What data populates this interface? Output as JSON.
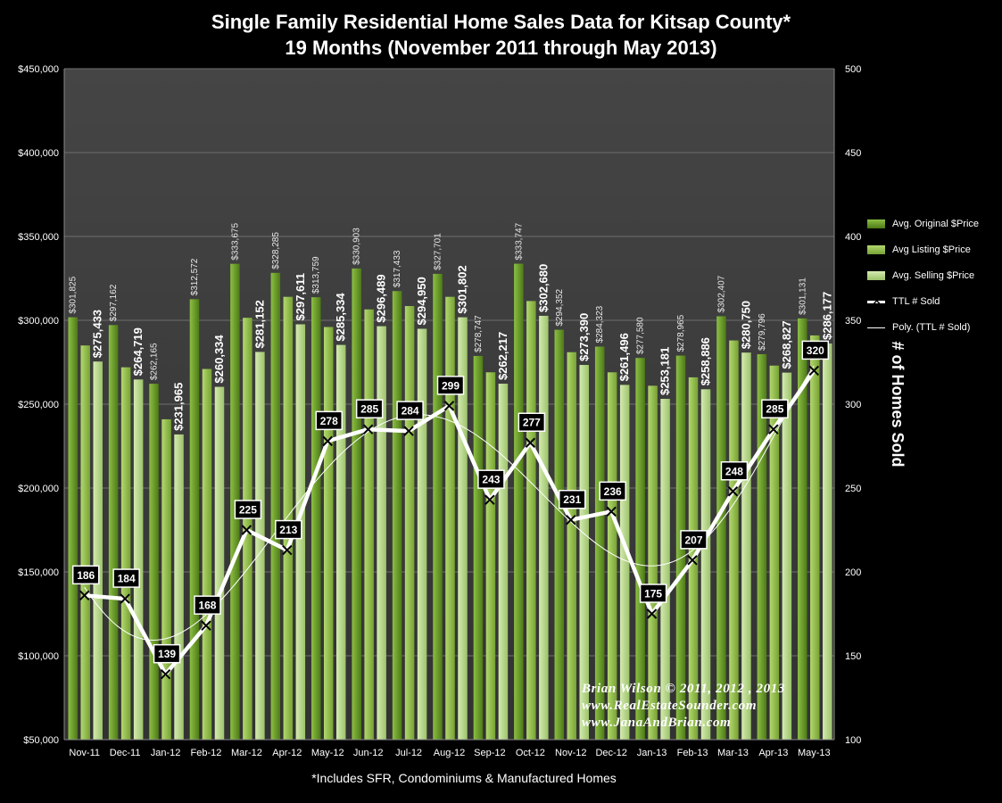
{
  "title_line1": "Single Family Residential Home Sales Data for Kitsap County*",
  "title_line2": "19 Months (November 2011 through May 2013)",
  "footnote": "*Includes SFR, Condominiums & Manufactured Homes",
  "credit": {
    "line1": "Brian Wilson © 2011, 2012 , 2013",
    "line2": "www.RealEstateSounder.com",
    "line3": "www.JanaAndBrian.com"
  },
  "legend": {
    "original": "Avg. Original $Price",
    "listing": "Avg Listing $Price",
    "selling": "Avg. Selling $Price",
    "sold": "TTL # Sold",
    "poly": "Poly. (TTL # Sold)"
  },
  "colors": {
    "background": "#000000",
    "plot_area": "#3c3c3c",
    "original": "#6b9a2c",
    "listing": "#93c04a",
    "selling": "#b7d98a",
    "line": "#ffffff"
  },
  "chart_data": {
    "type": "bar",
    "categories": [
      "Nov-11",
      "Dec-11",
      "Jan-12",
      "Feb-12",
      "Mar-12",
      "Apr-12",
      "May-12",
      "Jun-12",
      "Jul-12",
      "Aug-12",
      "Sep-12",
      "Oct-12",
      "Nov-12",
      "Dec-12",
      "Jan-13",
      "Feb-13",
      "Mar-13",
      "Apr-13",
      "May-13"
    ],
    "series": [
      {
        "name": "Avg. Original $Price",
        "values": [
          301825,
          297162,
          262165,
          312572,
          333675,
          328285,
          313759,
          330903,
          317433,
          327701,
          278747,
          333747,
          294352,
          284323,
          277580,
          278965,
          302407,
          279796,
          301131
        ]
      },
      {
        "name": "Avg Listing $Price",
        "values": [
          285000,
          272000,
          241000,
          271000,
          301500,
          314000,
          296000,
          306500,
          308500,
          314000,
          269000,
          311500,
          281000,
          269000,
          261000,
          266000,
          288000,
          273000,
          291000
        ]
      },
      {
        "name": "Avg. Selling $Price",
        "values": [
          275433,
          264719,
          231965,
          260334,
          281152,
          297611,
          285334,
          296489,
          294950,
          301802,
          262217,
          302680,
          273390,
          261496,
          253181,
          258886,
          280750,
          268827,
          286177
        ]
      },
      {
        "name": "TTL # Sold",
        "axis": "right",
        "values": [
          186,
          184,
          139,
          168,
          225,
          213,
          278,
          285,
          284,
          299,
          243,
          277,
          231,
          236,
          175,
          207,
          248,
          285,
          320
        ]
      }
    ],
    "original_labels": [
      "$301,825",
      "$297,162",
      "$262,165",
      "$312,572",
      "$333,675",
      "$328,285",
      "$313,759",
      "$330,903",
      "$317,433",
      "$327,701",
      "$278,747",
      "$333,747",
      "$294,352",
      "$284,323",
      "$277,580",
      "$278,965",
      "$302,407",
      "$279,796",
      "$301,131"
    ],
    "selling_labels": [
      "$275,433",
      "$264,719",
      "$231,965",
      "$260,334",
      "$281,152",
      "$297,611",
      "$285,334",
      "$296,489",
      "$294,950",
      "$301,802",
      "$262,217",
      "$302,680",
      "$273,390",
      "$261,496",
      "$253,181",
      "$258,886",
      "$280,750",
      "$268,827",
      "$286,177"
    ],
    "sold_labels": [
      "186",
      "184",
      "139",
      "168",
      "225",
      "213",
      "278",
      "285",
      "284",
      "299",
      "243",
      "277",
      "231",
      "236",
      "175",
      "207",
      "248",
      "285",
      "320"
    ],
    "y_left": {
      "min": 50000,
      "max": 450000,
      "step": 50000,
      "ticks": [
        "$50,000",
        "$100,000",
        "$150,000",
        "$200,000",
        "$250,000",
        "$300,000",
        "$350,000",
        "$400,000",
        "$450,000"
      ]
    },
    "y_right": {
      "min": 100,
      "max": 500,
      "step": 50,
      "label": "# of Homes Sold",
      "ticks": [
        "100",
        "150",
        "200",
        "250",
        "300",
        "350",
        "400",
        "450",
        "500"
      ]
    },
    "trendline": "polynomial",
    "legend_position": "right"
  }
}
